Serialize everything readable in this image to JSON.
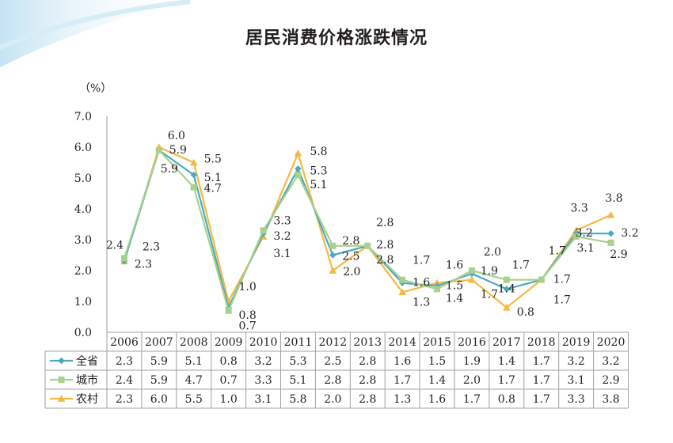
{
  "title": "居民消费价格涨跌情况",
  "unit": "（%）",
  "colors": {
    "province": "#4aa9c1",
    "city": "#a9d18e",
    "rural": "#f4b942",
    "grid": "#a0a0a0",
    "text": "#231f20"
  },
  "chart_data": {
    "type": "line",
    "x": [
      "2006",
      "2007",
      "2008",
      "2009",
      "2010",
      "2011",
      "2012",
      "2013",
      "2014",
      "2015",
      "2016",
      "2017",
      "2018",
      "2019",
      "2020"
    ],
    "y_ticks": [
      "0.0",
      "1.0",
      "2.0",
      "3.0",
      "4.0",
      "5.0",
      "6.0",
      "7.0"
    ],
    "ylim": [
      0,
      7
    ],
    "series": [
      {
        "name": "全省",
        "marker": "diamond",
        "values": [
          2.3,
          5.9,
          5.1,
          0.8,
          3.2,
          5.3,
          2.5,
          2.8,
          1.6,
          1.5,
          1.9,
          1.4,
          1.7,
          3.2,
          3.2
        ],
        "table": [
          "2.3",
          "5.9",
          "5.1",
          "0.8",
          "3.2",
          "5.3",
          "2.5",
          "2.8",
          "1.6",
          "1.5",
          "1.9",
          "1.4",
          "1.7",
          "3.2",
          "3.2"
        ]
      },
      {
        "name": "城市",
        "marker": "square",
        "values": [
          2.4,
          5.9,
          4.7,
          0.7,
          3.3,
          5.1,
          2.8,
          2.8,
          1.7,
          1.4,
          2.0,
          1.7,
          1.7,
          3.1,
          2.9
        ],
        "table": [
          "2.4",
          "5.9",
          "4.7",
          "0.7",
          "3.3",
          "5.1",
          "2.8",
          "2.8",
          "1.7",
          "1.4",
          "2.0",
          "1.7",
          "1.7",
          "3.1",
          "2.9"
        ]
      },
      {
        "name": "农村",
        "marker": "triangle",
        "values": [
          2.3,
          6.0,
          5.5,
          1.0,
          3.1,
          5.8,
          2.0,
          2.8,
          1.3,
          1.6,
          1.7,
          0.8,
          1.7,
          3.3,
          3.8
        ],
        "table": [
          "2.3",
          "6.0",
          "5.5",
          "1.0",
          "3.1",
          "5.8",
          "2.0",
          "2.8",
          "1.3",
          "1.6",
          "1.7",
          "0.8",
          "1.7",
          "3.3",
          "3.8"
        ]
      }
    ],
    "data_labels": [
      {
        "text": "2.4",
        "year": "2006",
        "dx": -12,
        "dy": -12
      },
      {
        "text": "2.3",
        "year": "2006",
        "dx": 34,
        "dy": -14
      },
      {
        "text": "2.3",
        "year": "2006",
        "dx": 24,
        "dy": 8
      },
      {
        "text": "6.0",
        "year": "2007",
        "dx": 22,
        "dy": -10
      },
      {
        "text": "5.9",
        "year": "2007",
        "dx": 24,
        "dy": 4
      },
      {
        "text": "5.9",
        "year": "2007",
        "dx": 13,
        "dy": 28
      },
      {
        "text": "5.5",
        "year": "2008",
        "dx": 24,
        "dy": 0
      },
      {
        "text": "5.1",
        "year": "2008",
        "dx": 24,
        "dy": 8
      },
      {
        "text": "4.7",
        "year": "2008",
        "dx": 24,
        "dy": 6
      },
      {
        "text": "1.0",
        "year": "2009",
        "dx": 24,
        "dy": -14
      },
      {
        "text": "0.8",
        "year": "2009",
        "dx": 24,
        "dy": 14
      },
      {
        "text": "0.7",
        "year": "2009",
        "dx": 24,
        "dy": 24
      },
      {
        "text": "3.3",
        "year": "2010",
        "dx": 24,
        "dy": -8
      },
      {
        "text": "3.2",
        "year": "2010",
        "dx": 24,
        "dy": 8
      },
      {
        "text": "3.1",
        "year": "2010",
        "dx": 24,
        "dy": 26
      },
      {
        "text": "5.8",
        "year": "2011",
        "dx": 26,
        "dy": 2
      },
      {
        "text": "5.3",
        "year": "2011",
        "dx": 26,
        "dy": 7
      },
      {
        "text": "5.1",
        "year": "2011",
        "dx": 26,
        "dy": 17
      },
      {
        "text": "2.8",
        "year": "2012",
        "dx": 23,
        "dy": -2
      },
      {
        "text": "2.5",
        "year": "2012",
        "dx": 23,
        "dy": 6
      },
      {
        "text": "2.0",
        "year": "2012",
        "dx": 24,
        "dy": 6
      },
      {
        "text": "2.8",
        "year": "2013",
        "dx": 22,
        "dy": -25
      },
      {
        "text": "2.8",
        "year": "2013",
        "dx": 22,
        "dy": 3
      },
      {
        "text": "2.8",
        "year": "2013",
        "dx": 22,
        "dy": 22
      },
      {
        "text": "1.7",
        "year": "2014",
        "dx": 24,
        "dy": -20
      },
      {
        "text": "1.6",
        "year": "2014",
        "dx": 24,
        "dy": 4
      },
      {
        "text": "1.3",
        "year": "2014",
        "dx": 24,
        "dy": 17
      },
      {
        "text": "1.6",
        "year": "2015",
        "dx": 22,
        "dy": -18
      },
      {
        "text": "1.5",
        "year": "2015",
        "dx": 22,
        "dy": 4
      },
      {
        "text": "1.4",
        "year": "2015",
        "dx": 22,
        "dy": 16
      },
      {
        "text": "2.0",
        "year": "2016",
        "dx": 26,
        "dy": -19
      },
      {
        "text": "1.9",
        "year": "2016",
        "dx": 22,
        "dy": 1
      },
      {
        "text": "1.7",
        "year": "2016",
        "dx": 22,
        "dy": 23
      },
      {
        "text": "1.7",
        "year": "2017",
        "dx": 18,
        "dy": -14
      },
      {
        "text": "1.4",
        "year": "2017",
        "dx": 0,
        "dy": 4
      },
      {
        "text": "0.8",
        "year": "2017",
        "dx": 24,
        "dy": 10
      },
      {
        "text": "1.7",
        "year": "2018",
        "dx": 20,
        "dy": -32
      },
      {
        "text": "1.7",
        "year": "2018",
        "dx": 26,
        "dy": 4
      },
      {
        "text": "1.7",
        "year": "2018",
        "dx": 26,
        "dy": 30
      },
      {
        "text": "3.3",
        "year": "2019",
        "dx": 4,
        "dy": -24
      },
      {
        "text": "3.2",
        "year": "2019",
        "dx": 10,
        "dy": 4
      },
      {
        "text": "3.1",
        "year": "2019",
        "dx": 12,
        "dy": 19
      },
      {
        "text": "3.8",
        "year": "2020",
        "dx": 4,
        "dy": -17
      },
      {
        "text": "3.2",
        "year": "2020",
        "dx": 24,
        "dy": 4
      },
      {
        "text": "2.9",
        "year": "2020",
        "dx": 10,
        "dy": 19
      }
    ]
  }
}
